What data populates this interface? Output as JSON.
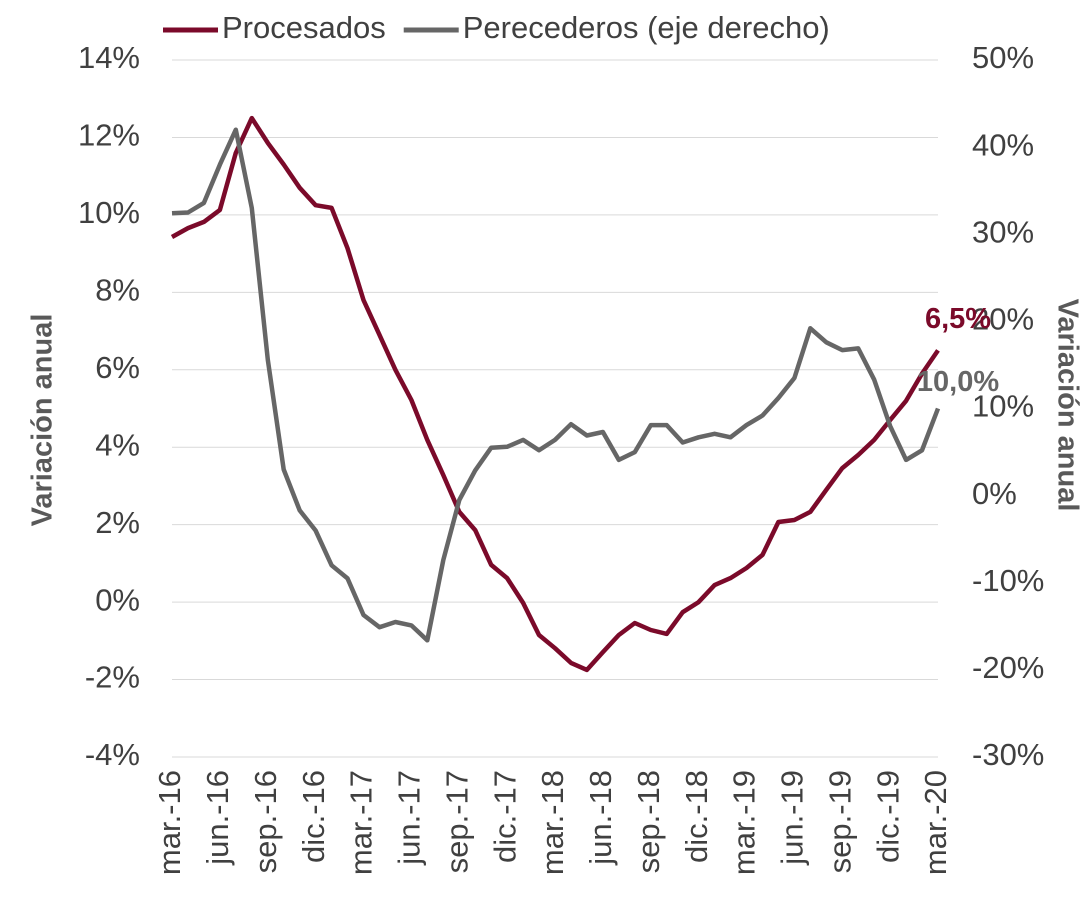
{
  "chart_data": {
    "type": "line",
    "categories": [
      "mar.-16",
      null,
      null,
      "jun.-16",
      null,
      null,
      "sep.-16",
      null,
      null,
      "dic.-16",
      null,
      null,
      "mar.-17",
      null,
      null,
      "jun.-17",
      null,
      null,
      "sep.-17",
      null,
      null,
      "dic.-17",
      null,
      null,
      "mar.-18",
      null,
      null,
      "jun.-18",
      null,
      null,
      "sep.-18",
      null,
      null,
      "dic.-18",
      null,
      null,
      "mar.-19",
      null,
      null,
      "jun.-19",
      null,
      null,
      "sep.-19",
      null,
      null,
      "dic.-19",
      null,
      null,
      "mar.-20"
    ],
    "series": [
      {
        "name": "Procesados",
        "color": "#7b0a2a",
        "axis": "y",
        "values": [
          9.43,
          9.66,
          9.82,
          10.13,
          11.6,
          12.5,
          11.86,
          11.3,
          10.7,
          10.25,
          10.18,
          9.14,
          7.8,
          6.9,
          6.0,
          5.22,
          4.19,
          3.28,
          2.33,
          1.86,
          0.96,
          0.62,
          -0.02,
          -0.85,
          -1.19,
          -1.57,
          -1.75,
          -1.29,
          -0.85,
          -0.54,
          -0.72,
          -0.82,
          -0.26,
          0.0,
          0.44,
          0.62,
          0.88,
          1.22,
          2.07,
          2.12,
          2.33,
          2.9,
          3.46,
          3.8,
          4.19,
          4.7,
          5.2,
          5.9,
          6.5
        ],
        "value_labels": [
          null,
          null,
          null,
          null,
          null,
          null,
          null,
          null,
          null,
          null,
          null,
          null,
          null,
          null,
          null,
          null,
          null,
          null,
          null,
          null,
          null,
          null,
          null,
          null,
          null,
          null,
          null,
          null,
          null,
          null,
          null,
          null,
          null,
          null,
          null,
          null,
          null,
          null,
          null,
          null,
          null,
          null,
          null,
          null,
          null,
          null,
          null,
          null,
          "6,5%"
        ]
      },
      {
        "name": "Perecederos (eje derecho)",
        "color": "#666666",
        "axis": "y2",
        "values": [
          32.4,
          32.5,
          33.6,
          38.0,
          42.0,
          33.0,
          15.6,
          3.0,
          -1.7,
          -4.0,
          -8.0,
          -9.5,
          -13.7,
          -15.1,
          -14.5,
          -14.9,
          -16.6,
          -7.4,
          -0.5,
          2.9,
          5.5,
          5.6,
          6.4,
          5.2,
          6.4,
          8.2,
          6.9,
          7.3,
          4.1,
          5.0,
          8.1,
          8.1,
          6.1,
          6.7,
          7.1,
          6.7,
          8.1,
          9.2,
          11.2,
          13.5,
          19.2,
          17.6,
          16.7,
          16.9,
          13.3,
          8.0,
          4.1,
          5.2,
          10.0
        ],
        "value_labels": [
          null,
          null,
          null,
          null,
          null,
          null,
          null,
          null,
          null,
          null,
          null,
          null,
          null,
          null,
          null,
          null,
          null,
          null,
          null,
          null,
          null,
          null,
          null,
          null,
          null,
          null,
          null,
          null,
          null,
          null,
          null,
          null,
          null,
          null,
          null,
          null,
          null,
          null,
          null,
          null,
          null,
          null,
          null,
          null,
          null,
          null,
          null,
          null,
          "10,0%"
        ]
      }
    ],
    "ylabel": "Variación anual",
    "y2label": "Variación anual",
    "ylim": [
      -4,
      14
    ],
    "yticks": [
      {
        "value": -4,
        "label": "-4%"
      },
      {
        "value": -2,
        "label": "-2%"
      },
      {
        "value": 0,
        "label": "0%"
      },
      {
        "value": 2,
        "label": "2%"
      },
      {
        "value": 4,
        "label": "4%"
      },
      {
        "value": 6,
        "label": "6%"
      },
      {
        "value": 8,
        "label": "8%"
      },
      {
        "value": 10,
        "label": "10%"
      },
      {
        "value": 12,
        "label": "12%"
      },
      {
        "value": 14,
        "label": "14%"
      }
    ],
    "y2lim": [
      -30,
      50
    ],
    "y2ticks": [
      {
        "value": -30,
        "label": "-30%"
      },
      {
        "value": -20,
        "label": "-20%"
      },
      {
        "value": -10,
        "label": "-10%"
      },
      {
        "value": 0,
        "label": "0%"
      },
      {
        "value": 10,
        "label": "10%"
      },
      {
        "value": 20,
        "label": "20%"
      },
      {
        "value": 30,
        "label": "30%"
      },
      {
        "value": 40,
        "label": "40%"
      },
      {
        "value": 50,
        "label": "50%"
      }
    ],
    "grid": true,
    "legend": "top"
  }
}
